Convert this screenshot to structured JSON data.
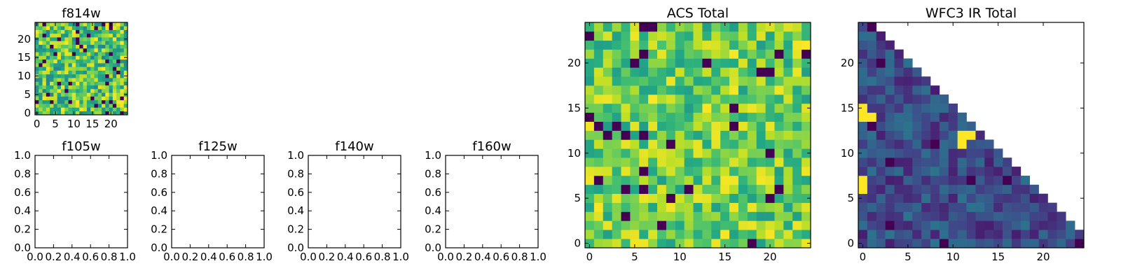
{
  "chart_data": [
    {
      "type": "heatmap",
      "title": "f814w",
      "grid_size": 25,
      "colormap": "viridis",
      "xticks": [
        0,
        5,
        10,
        15,
        20
      ],
      "yticks": [
        0,
        5,
        10,
        15,
        20
      ],
      "seed": 17,
      "value_range": [
        0.45,
        1.0
      ],
      "dark_fraction": 0.06
    },
    {
      "type": "heatmap",
      "title": "ACS Total",
      "grid_size": 25,
      "colormap": "viridis",
      "xticks": [
        0,
        5,
        10,
        15,
        20
      ],
      "yticks": [
        0,
        5,
        10,
        15,
        20
      ],
      "seed": 29,
      "value_range": [
        0.55,
        1.0
      ],
      "dark_fraction": 0.03
    },
    {
      "type": "heatmap",
      "title": "WFC3 IR Total",
      "grid_size": 25,
      "colormap": "viridis",
      "xticks": [
        0,
        5,
        10,
        15,
        20
      ],
      "yticks": [
        0,
        5,
        10,
        15,
        20
      ],
      "seed": 41,
      "value_range": [
        0.08,
        0.38
      ],
      "dark_fraction": 0.04,
      "masked_region": "upper-right triangle",
      "bright_cells": [
        [
          0,
          14
        ],
        [
          0,
          15
        ],
        [
          1,
          14
        ],
        [
          11,
          12
        ],
        [
          12,
          12
        ],
        [
          11,
          11
        ],
        [
          0,
          6
        ],
        [
          0,
          7
        ]
      ]
    },
    {
      "type": "empty",
      "title": "f105w",
      "xlim": [
        0.0,
        1.0
      ],
      "ylim": [
        0.0,
        1.0
      ],
      "xticklabels": [
        "0.0",
        "0.2",
        "0.4",
        "0.6",
        "0.8",
        "1.0"
      ],
      "yticklabels": [
        "0.0",
        "0.2",
        "0.4",
        "0.6",
        "0.8",
        "1.0"
      ]
    },
    {
      "type": "empty",
      "title": "f125w",
      "xlim": [
        0.0,
        1.0
      ],
      "ylim": [
        0.0,
        1.0
      ],
      "xticklabels": [
        "0.0",
        "0.2",
        "0.4",
        "0.6",
        "0.8",
        "1.0"
      ],
      "yticklabels": [
        "0.0",
        "0.2",
        "0.4",
        "0.6",
        "0.8",
        "1.0"
      ]
    },
    {
      "type": "empty",
      "title": "f140w",
      "xlim": [
        0.0,
        1.0
      ],
      "ylim": [
        0.0,
        1.0
      ],
      "xticklabels": [
        "0.0",
        "0.2",
        "0.4",
        "0.6",
        "0.8",
        "1.0"
      ],
      "yticklabels": [
        "0.0",
        "0.2",
        "0.4",
        "0.6",
        "0.8",
        "1.0"
      ]
    },
    {
      "type": "empty",
      "title": "f160w",
      "xlim": [
        0.0,
        1.0
      ],
      "ylim": [
        0.0,
        1.0
      ],
      "xticklabels": [
        "0.0",
        "0.2",
        "0.4",
        "0.6",
        "0.8",
        "1.0"
      ],
      "yticklabels": [
        "0.0",
        "0.2",
        "0.4",
        "0.6",
        "0.8",
        "1.0"
      ]
    }
  ]
}
